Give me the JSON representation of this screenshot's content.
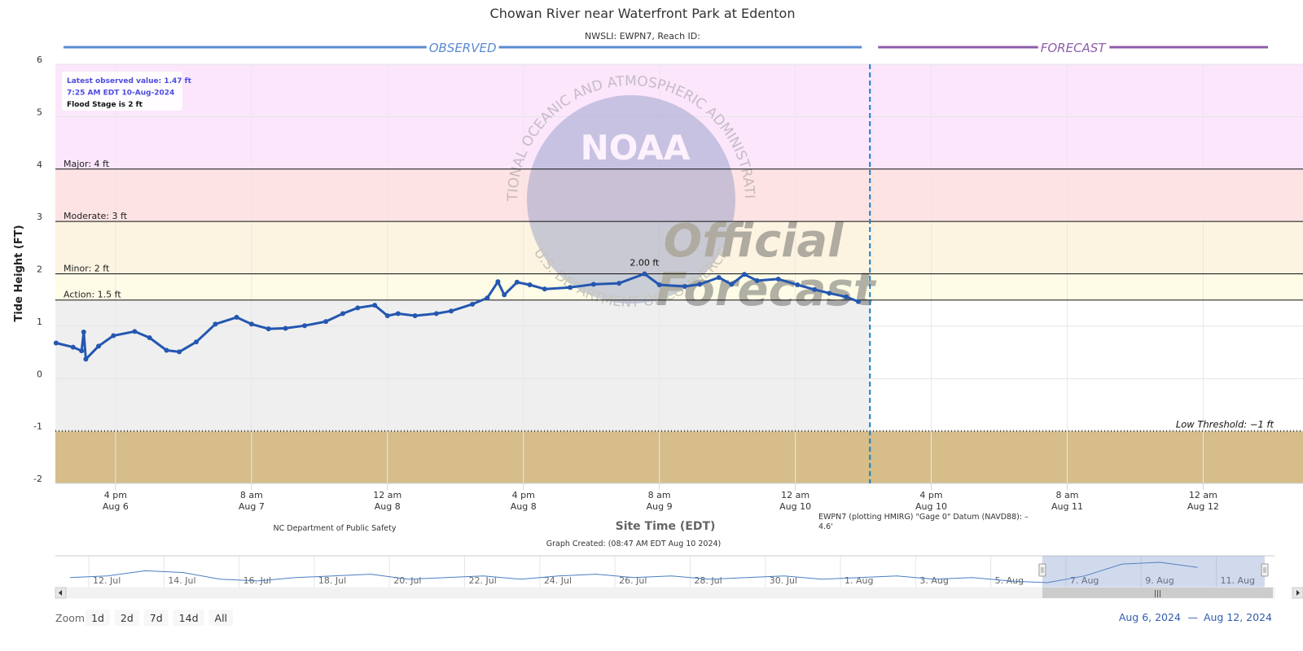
{
  "chart_data": {
    "type": "line",
    "title": "Chowan River near Waterfront Park at Edenton",
    "subtitle": "NWSLI: EWPN7, Reach ID:",
    "y_label": "Tide Height (FT)",
    "x_label": "Site Time (EDT)",
    "xlim": [
      "2024-08-06 08:55",
      "2024-08-12 11:45"
    ],
    "xticks": [
      {
        "value": "2024-08-06 16:00",
        "label": "4 pm",
        "date": "Aug 6"
      },
      {
        "value": "2024-08-07 08:00",
        "label": "8 am",
        "date": "Aug 7"
      },
      {
        "value": "2024-08-08 00:00",
        "label": "12 am",
        "date": "Aug 8"
      },
      {
        "value": "2024-08-08 16:00",
        "label": "4 pm",
        "date": "Aug 8"
      },
      {
        "value": "2024-08-09 08:00",
        "label": "8 am",
        "date": "Aug 9"
      },
      {
        "value": "2024-08-10 00:00",
        "label": "12 am",
        "date": "Aug 10"
      },
      {
        "value": "2024-08-10 16:00",
        "label": "4 pm",
        "date": "Aug 10"
      },
      {
        "value": "2024-08-11 08:00",
        "label": "8 am",
        "date": "Aug 11"
      },
      {
        "value": "2024-08-12 00:00",
        "label": "12 am",
        "date": "Aug 12"
      }
    ],
    "ylim": [
      -2,
      6
    ],
    "yticks": [
      6,
      5,
      4,
      3,
      2,
      1,
      0,
      -1,
      -2
    ],
    "grid": true,
    "series": [
      {
        "color": "#2457b0",
        "x": [
          "2024-08-06 09:00",
          "2024-08-06 11:00",
          "2024-08-06 12:00",
          "2024-08-06 12:15",
          "2024-08-06 12:30",
          "2024-08-06 14:00",
          "2024-08-06 15:45",
          "2024-08-06 18:15",
          "2024-08-06 20:00",
          "2024-08-06 22:00",
          "2024-08-06 23:30",
          "2024-08-07 01:30",
          "2024-08-07 03:45",
          "2024-08-07 06:15",
          "2024-08-07 08:00",
          "2024-08-07 10:00",
          "2024-08-07 12:00",
          "2024-08-07 14:15",
          "2024-08-07 16:45",
          "2024-08-07 18:45",
          "2024-08-07 20:30",
          "2024-08-07 22:30",
          "2024-08-08 00:00",
          "2024-08-08 01:15",
          "2024-08-08 03:15",
          "2024-08-08 05:45",
          "2024-08-08 07:30",
          "2024-08-08 10:00",
          "2024-08-08 11:45",
          "2024-08-08 13:00",
          "2024-08-08 13:45",
          "2024-08-08 15:15",
          "2024-08-08 16:45",
          "2024-08-08 18:30",
          "2024-08-08 21:30",
          "2024-08-09 00:15",
          "2024-08-09 03:15",
          "2024-08-09 06:15",
          "2024-08-09 08:00",
          "2024-08-09 11:00",
          "2024-08-09 12:45",
          "2024-08-09 15:00",
          "2024-08-09 16:30",
          "2024-08-09 18:00",
          "2024-08-09 19:30",
          "2024-08-09 22:00",
          "2024-08-10 00:15",
          "2024-08-10 02:15",
          "2024-08-10 04:00",
          "2024-08-10 06:00",
          "2024-08-10 07:25"
        ],
        "values": [
          0.68,
          0.6,
          0.53,
          0.89,
          0.37,
          0.62,
          0.82,
          0.9,
          0.78,
          0.54,
          0.51,
          0.7,
          1.04,
          1.17,
          1.04,
          0.95,
          0.96,
          1.01,
          1.09,
          1.24,
          1.35,
          1.4,
          1.2,
          1.24,
          1.2,
          1.24,
          1.29,
          1.42,
          1.54,
          1.85,
          1.6,
          1.84,
          1.79,
          1.71,
          1.74,
          1.8,
          1.82,
          2.0,
          1.79,
          1.76,
          1.8,
          1.93,
          1.8,
          1.99,
          1.87,
          1.9,
          1.79,
          1.7,
          1.63,
          1.56,
          1.47
        ]
      }
    ],
    "peak_label": "2.00 ft",
    "sections": [
      {
        "label": "OBSERVED",
        "color": "#5b8bd0"
      },
      {
        "label": "FORECAST",
        "color": "#8e5ea9"
      }
    ],
    "forecast_start": "2024-08-10 08:47",
    "thresholds": [
      {
        "label": "Major: 4 ft",
        "value": 4,
        "color": "#fbe6fc"
      },
      {
        "label": "Moderate: 3 ft",
        "value": 3,
        "color": "#fde3e4"
      },
      {
        "label": "Minor: 2 ft",
        "value": 2,
        "color": "#fdf3e1"
      },
      {
        "label": "Action: 1.5 ft",
        "value": 1.5,
        "color": "#fefce6"
      }
    ],
    "low_threshold": {
      "label": "Low Threshold: −1 ft",
      "value": -1,
      "color": "#d6bd8a"
    },
    "observed_fill": "#efefef",
    "info_box": [
      "Latest observed value: 1.47 ft",
      "7:25 AM EDT 10-Aug-2024",
      "Flood Stage is 2 ft"
    ],
    "source": "NC Department of Public Safety",
    "datum": "EWPN7 (plotting HMIRG) \"Gage 0\" Datum (NAVD88): –4.6'",
    "created": "Graph Created: (08:47 AM EDT Aug 10 2024)",
    "watermark": {
      "logo": "NOAA",
      "ring_top": "NATIONAL OCEANIC AND ATMOSPHERIC ADMINISTRATION",
      "ring_bottom": "U.S. DEPARTMENT OF COMMERCE",
      "line1": "Official",
      "line2": "Forecast"
    },
    "navigator": {
      "xlim": [
        "2024-07-11 02:40",
        "2024-08-12 13:10"
      ],
      "xticks": [
        {
          "value": "2024-07-12 00:00",
          "label": "12. Jul"
        },
        {
          "value": "2024-07-14 00:00",
          "label": "14. Jul"
        },
        {
          "value": "2024-07-16 00:00",
          "label": "16. Jul"
        },
        {
          "value": "2024-07-18 00:00",
          "label": "18. Jul"
        },
        {
          "value": "2024-07-20 00:00",
          "label": "20. Jul"
        },
        {
          "value": "2024-07-22 00:00",
          "label": "22. Jul"
        },
        {
          "value": "2024-07-24 00:00",
          "label": "24. Jul"
        },
        {
          "value": "2024-07-26 00:00",
          "label": "26. Jul"
        },
        {
          "value": "2024-07-28 00:00",
          "label": "28. Jul"
        },
        {
          "value": "2024-07-30 00:00",
          "label": "30. Jul"
        },
        {
          "value": "2024-08-01 00:00",
          "label": "1. Aug"
        },
        {
          "value": "2024-08-03 00:00",
          "label": "3. Aug"
        },
        {
          "value": "2024-08-05 00:00",
          "label": "5. Aug"
        },
        {
          "value": "2024-08-07 00:00",
          "label": "7. Aug"
        },
        {
          "value": "2024-08-09 00:00",
          "label": "9. Aug"
        },
        {
          "value": "2024-08-11 00:00",
          "label": "11. Aug"
        }
      ],
      "color": "#4a7ec0",
      "x": [
        "2024-07-11 12:00",
        "2024-07-12 12:00",
        "2024-07-13 12:00",
        "2024-07-14 12:00",
        "2024-07-15 12:00",
        "2024-07-16 12:00",
        "2024-07-17 12:00",
        "2024-07-18 12:00",
        "2024-07-19 12:00",
        "2024-07-20 12:00",
        "2024-07-21 12:00",
        "2024-07-22 12:00",
        "2024-07-23 12:00",
        "2024-07-24 12:00",
        "2024-07-25 12:00",
        "2024-07-26 12:00",
        "2024-07-27 12:00",
        "2024-07-28 12:00",
        "2024-07-29 12:00",
        "2024-07-30 12:00",
        "2024-07-31 12:00",
        "2024-08-01 12:00",
        "2024-08-02 12:00",
        "2024-08-03 12:00",
        "2024-08-04 12:00",
        "2024-08-05 12:00",
        "2024-08-06 12:00",
        "2024-08-07 12:00",
        "2024-08-08 12:00",
        "2024-08-09 12:00",
        "2024-08-10 12:00"
      ],
      "values": [
        0.9,
        1.0,
        1.3,
        1.2,
        0.8,
        0.7,
        0.9,
        1.0,
        1.1,
        0.8,
        0.9,
        1.0,
        0.8,
        1.0,
        1.1,
        0.9,
        1.0,
        0.8,
        0.9,
        1.0,
        0.8,
        0.9,
        1.0,
        0.8,
        0.9,
        0.7,
        0.6,
        1.0,
        1.7,
        1.8,
        1.5
      ]
    },
    "range_selector": {
      "label": "Zoom",
      "buttons": [
        "1d",
        "2d",
        "7d",
        "14d",
        "All"
      ],
      "from": "Aug 6, 2024",
      "separator": "—",
      "to": "Aug 12, 2024"
    }
  }
}
